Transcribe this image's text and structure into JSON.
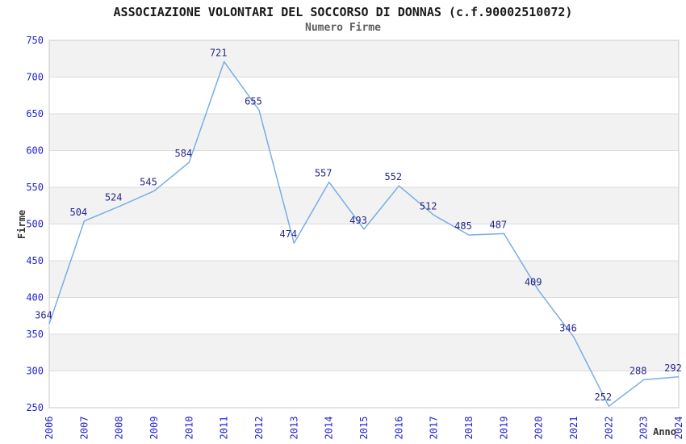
{
  "chart_data": {
    "type": "line",
    "title": "ASSOCIAZIONE VOLONTARI DEL SOCCORSO DI DONNAS (c.f.90002510072)",
    "subtitle": "Numero Firme",
    "xlabel": "Anno",
    "ylabel": "Firme",
    "categories": [
      "2006",
      "2007",
      "2008",
      "2009",
      "2010",
      "2011",
      "2012",
      "2013",
      "2014",
      "2015",
      "2016",
      "2017",
      "2018",
      "2019",
      "2020",
      "2021",
      "2022",
      "2023",
      "2024"
    ],
    "values": [
      364,
      504,
      524,
      545,
      584,
      721,
      655,
      474,
      557,
      493,
      552,
      512,
      485,
      487,
      409,
      346,
      252,
      288,
      292
    ],
    "data_labels_visible": true,
    "ylim": [
      250,
      750
    ],
    "y_tick_step": 50,
    "y_ticks": [
      250,
      300,
      350,
      400,
      450,
      500,
      550,
      600,
      650,
      700,
      750
    ],
    "x_tick_rotation_deg": -90,
    "grid": true,
    "banded_background": true,
    "legend": false,
    "colors": {
      "line": "#79ade6",
      "tick_label": "#2323cc",
      "data_label": "#26268c",
      "band_gray": "#f2f2f2",
      "band_white": "#ffffff",
      "gridline": "#dddddd",
      "plot_border": "#c9c9c9",
      "title_text": "#1a1a1a",
      "subtitle_text": "#5f5f5f",
      "axis_title_text": "#333333",
      "background": "#ffffff"
    }
  }
}
